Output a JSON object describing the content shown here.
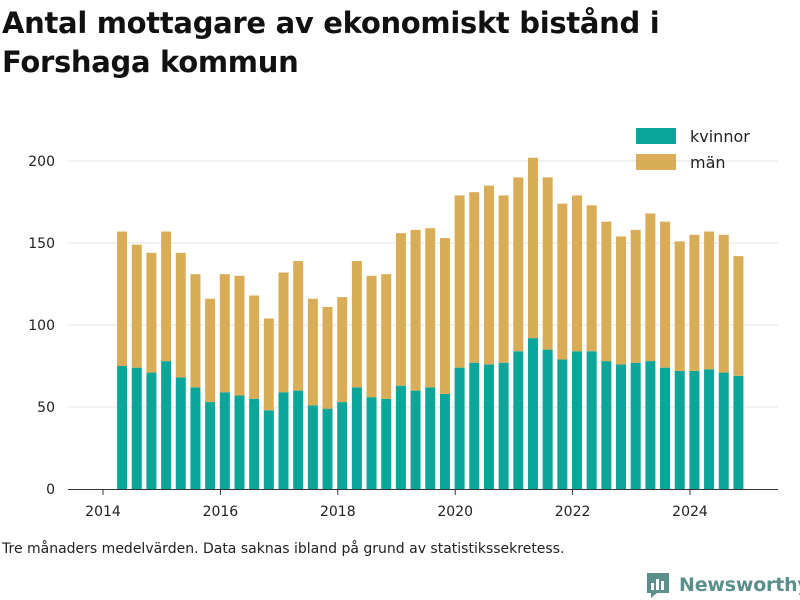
{
  "title": "Antal mottagare av ekonomiskt bistånd i Forshaga kommun",
  "footnote": "Tre månaders medelvärden. Data saknas ibland på grund av statistikssekretess.",
  "brand": {
    "name": "Newsworthy",
    "icon": "bar-chart-logo-icon",
    "color": "#5a8f8b"
  },
  "chart_data": {
    "type": "bar",
    "stacked": true,
    "x_tick_labels": [
      "2014",
      "2016",
      "2018",
      "2020",
      "2022",
      "2024"
    ],
    "y_tick_labels": [
      "0",
      "50",
      "100",
      "150",
      "200"
    ],
    "ylim": [
      0,
      210
    ],
    "grid": true,
    "legend_position": "top-right",
    "series": [
      {
        "name": "kvinnor",
        "color": "#0ca59a",
        "values": [
          75,
          74,
          71,
          78,
          68,
          62,
          53,
          59,
          57,
          55,
          48,
          59,
          60,
          51,
          49,
          53,
          62,
          56,
          55,
          63,
          60,
          62,
          58,
          74,
          77,
          76,
          77,
          84,
          92,
          85,
          79,
          84,
          84,
          78,
          76,
          77,
          78,
          74,
          72,
          72,
          73,
          71,
          69
        ]
      },
      {
        "name": "män",
        "color": "#d9ad57",
        "values": [
          82,
          75,
          73,
          79,
          76,
          69,
          63,
          72,
          73,
          63,
          56,
          73,
          79,
          65,
          62,
          64,
          77,
          74,
          76,
          93,
          98,
          97,
          95,
          105,
          104,
          109,
          102,
          106,
          110,
          105,
          95,
          95,
          89,
          85,
          78,
          81,
          90,
          89,
          79,
          83,
          84,
          84,
          73
        ]
      }
    ]
  }
}
